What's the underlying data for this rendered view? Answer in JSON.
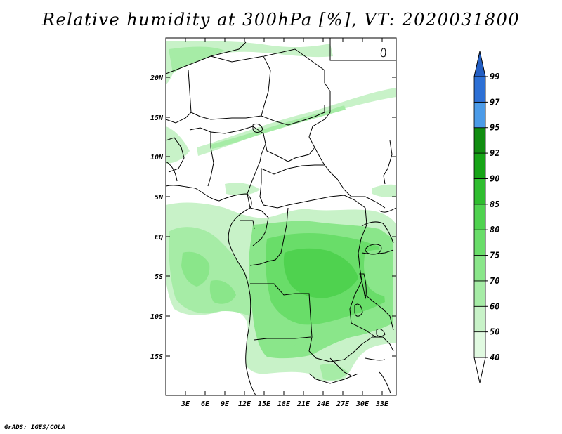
{
  "title": "Relative humidity at 300hPa [%], VT: 2020031800",
  "credit": "GrADS: IGES/COLA",
  "colors": {
    "background": "#ffffff",
    "border": "#000000"
  },
  "map": {
    "lat_labels": [
      "20N",
      "15N",
      "10N",
      "5N",
      "EQ",
      "5S",
      "10S",
      "15S"
    ],
    "lon_labels": [
      "3E",
      "6E",
      "9E",
      "12E",
      "15E",
      "18E",
      "21E",
      "24E",
      "27E",
      "30E",
      "33E"
    ]
  },
  "colorbar": {
    "levels": [
      "40",
      "50",
      "60",
      "70",
      "75",
      "80",
      "85",
      "90",
      "92",
      "95",
      "97",
      "99"
    ],
    "colors": [
      "#ffffff",
      "#e1fae1",
      "#c8f2c8",
      "#a6eca6",
      "#8ae68a",
      "#69dd69",
      "#4fd24f",
      "#2fbd2f",
      "#16a416",
      "#118d11",
      "#4b9be8",
      "#2d70d5",
      "#245fc3"
    ]
  }
}
